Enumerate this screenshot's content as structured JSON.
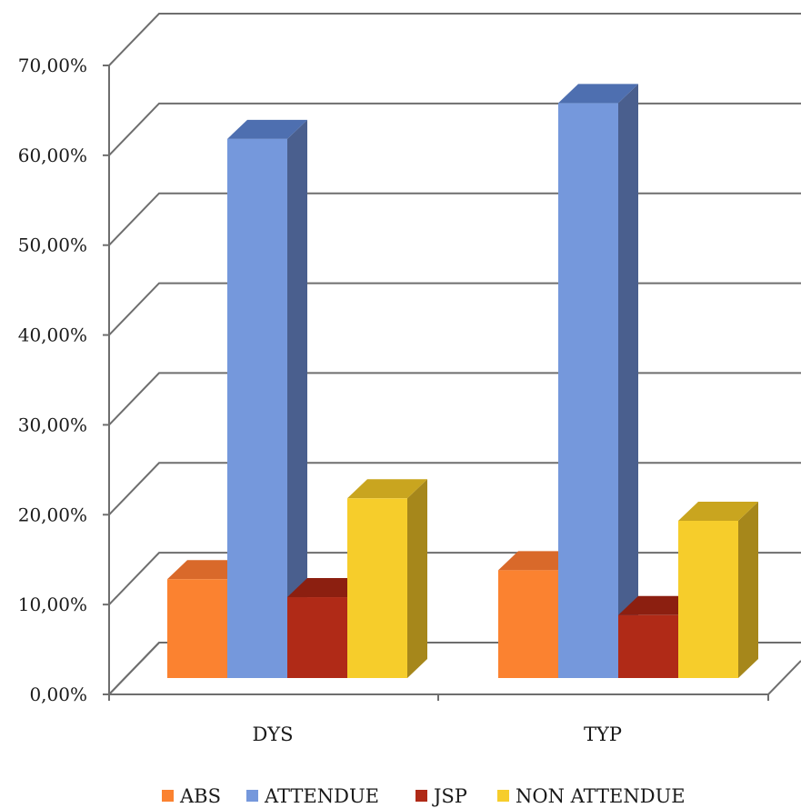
{
  "chart_data": {
    "type": "bar",
    "three_d": true,
    "categories": [
      "DYS",
      "TYP"
    ],
    "series": [
      {
        "name": "ABS",
        "values": [
          0.11,
          0.12
        ],
        "color": "#fb8230",
        "top": "#d9692a",
        "side": "#c9581c"
      },
      {
        "name": "ATTENDUE",
        "values": [
          0.6,
          0.64
        ],
        "color": "#7598dc",
        "top": "#4e6fb0",
        "side": "#4a5f8e"
      },
      {
        "name": "JSP",
        "values": [
          0.09,
          0.07
        ],
        "color": "#b02a17",
        "top": "#8c1f10",
        "side": "#7a1c0f"
      },
      {
        "name": "NON ATTENDUE",
        "values": [
          0.2,
          0.175
        ],
        "color": "#f6cd2b",
        "top": "#c9a51f",
        "side": "#a6871b"
      }
    ],
    "y_ticks": [
      "0,00%",
      "10,00%",
      "20,00%",
      "30,00%",
      "40,00%",
      "50,00%",
      "60,00%",
      "70,00%"
    ],
    "ylim": [
      0,
      0.7
    ],
    "grid": true,
    "legend_position": "bottom"
  }
}
